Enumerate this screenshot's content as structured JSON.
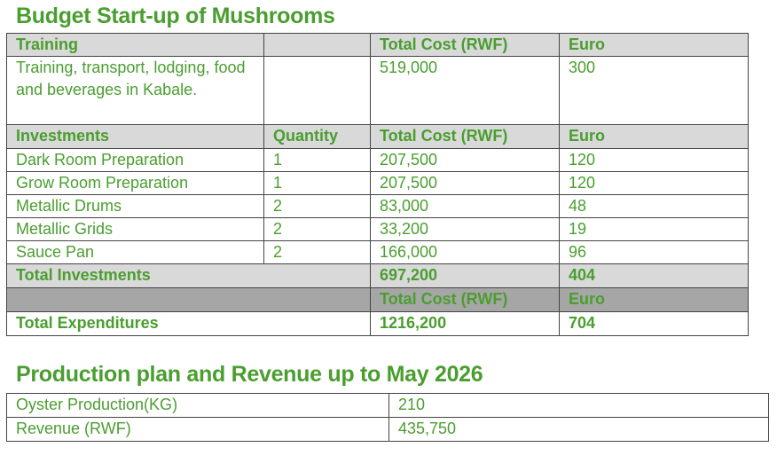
{
  "title": "Budget Start-up of Mushrooms",
  "budget_table": {
    "rows": [
      [
        "Training",
        "Total Cost (RWF)",
        "Euro"
      ],
      [
        "Training, transport, lodging, food and beverages in Kabale.",
        "519,000",
        "300"
      ],
      [
        "Investments",
        "Quantity",
        "Total Cost (RWF)",
        "Euro"
      ],
      [
        "Dark Room Preparation",
        "1",
        "207,500",
        "120"
      ],
      [
        "Grow Room Preparation",
        "1",
        "207,500",
        "120"
      ],
      [
        "Metallic Drums",
        "2",
        "83,000",
        "48"
      ],
      [
        "Metallic Grids",
        "2",
        "33,200",
        "19"
      ],
      [
        "Sauce Pan",
        "2",
        "166,000",
        "96"
      ],
      [
        "Total Investments",
        "697,200",
        "404"
      ],
      [
        "Total Cost (RWF)",
        "Euro"
      ],
      [
        "Total Expenditures",
        "1216,200",
        "704"
      ]
    ]
  },
  "production_title": "Production plan and Revenue up to May 2026",
  "production_table": {
    "rows": [
      [
        "Oyster Production(KG)",
        "210"
      ],
      [
        "Revenue (RWF)",
        "435,750"
      ]
    ]
  }
}
